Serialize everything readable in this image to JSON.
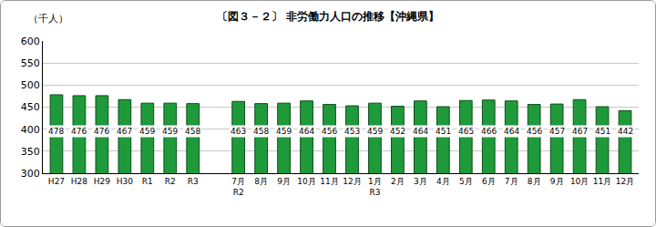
{
  "chart_data": {
    "type": "bar",
    "title": "〔図３－２〕 非労働力人口の推移【沖縄県】",
    "y_label": "（千人）",
    "categories": [
      "H27",
      "H28",
      "H29",
      "H30",
      "R1",
      "R2",
      "R3",
      null,
      "7月\nR2",
      "8月",
      "9月",
      "10月",
      "11月",
      "12月",
      "1月\nR3",
      "2月",
      "3月",
      "4月",
      "5月",
      "6月",
      "7月",
      "8月",
      "9月",
      "10月",
      "11月",
      "12月"
    ],
    "values": [
      478,
      476,
      476,
      467,
      459,
      459,
      458,
      null,
      463,
      458,
      459,
      464,
      456,
      453,
      459,
      452,
      464,
      451,
      465,
      466,
      464,
      456,
      457,
      467,
      451,
      442
    ],
    "color": "#1f9a3a",
    "ylim": [
      300,
      600
    ],
    "yticks": [
      300,
      350,
      400,
      450,
      500,
      550,
      600
    ],
    "grid": true,
    "data_labels": true
  }
}
